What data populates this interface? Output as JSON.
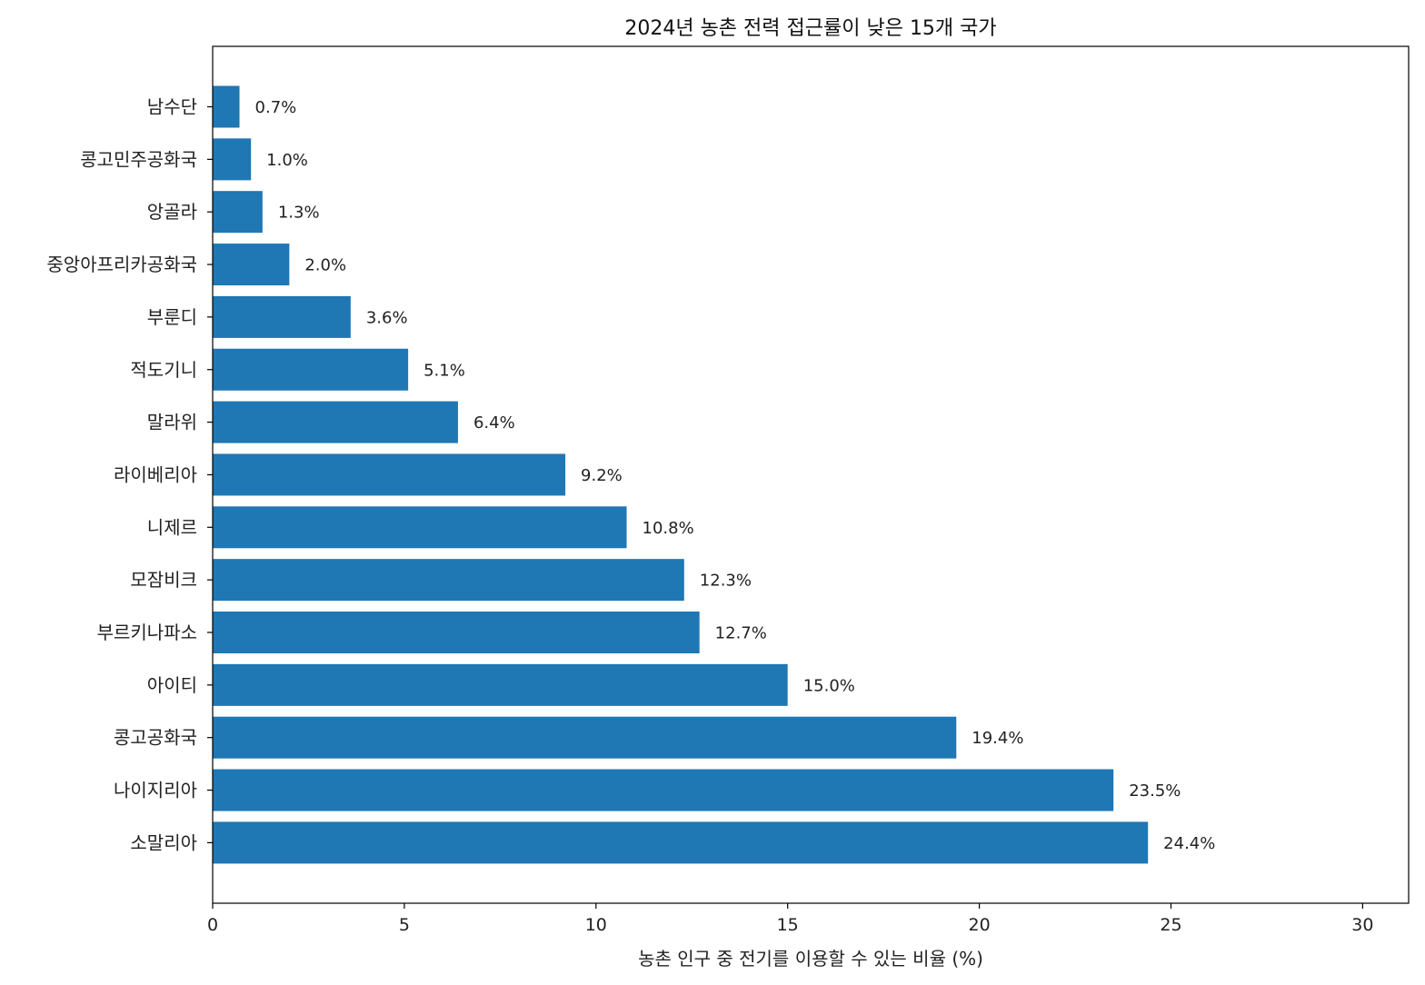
{
  "chart_data": {
    "type": "bar",
    "orientation": "horizontal",
    "title": "2024년 농촌 전력 접근률이 낮은 15개 국가",
    "xlabel": "농촌 인구 중 전기를 이용할 수 있는 비율 (%)",
    "ylabel": "",
    "xlim": [
      0,
      31.2
    ],
    "xticks": [
      0,
      5,
      10,
      15,
      20,
      25,
      30
    ],
    "grid": false,
    "bar_color": "#1f77b4",
    "categories": [
      "남수단",
      "콩고민주공화국",
      "앙골라",
      "중앙아프리카공화국",
      "부룬디",
      "적도기니",
      "말라위",
      "라이베리아",
      "니제르",
      "모잠비크",
      "부르키나파소",
      "아이티",
      "콩고공화국",
      "나이지리아",
      "소말리아"
    ],
    "values": [
      0.7,
      1.0,
      1.3,
      2.0,
      3.6,
      5.1,
      6.4,
      9.2,
      10.8,
      12.3,
      12.7,
      15.0,
      19.4,
      23.5,
      24.4
    ],
    "value_labels": [
      "0.7%",
      "1.0%",
      "1.3%",
      "2.0%",
      "3.6%",
      "5.1%",
      "6.4%",
      "9.2%",
      "10.8%",
      "12.3%",
      "12.7%",
      "15.0%",
      "19.4%",
      "23.5%",
      "24.4%"
    ]
  }
}
